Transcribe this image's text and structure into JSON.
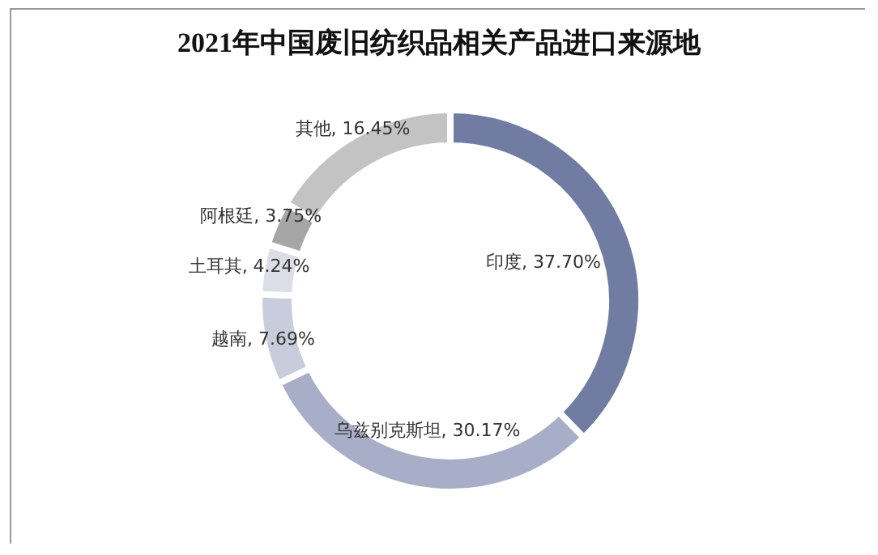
{
  "chart_data": {
    "type": "donut",
    "title": "2021年中国废旧纺织品相关产品进口来源地",
    "categories": [
      "印度",
      "乌兹别克斯坦",
      "越南",
      "土耳其",
      "阿根廷",
      "其他"
    ],
    "values": [
      37.7,
      30.17,
      7.69,
      4.24,
      3.75,
      16.45
    ],
    "value_labels": [
      "37.70%",
      "30.17%",
      "7.69%",
      "4.24%",
      "3.75%",
      "16.45%"
    ],
    "colors": [
      "#717ca2",
      "#a9aec8",
      "#c9ccdc",
      "#dcdee7",
      "#a6a6a6",
      "#c3c3c3"
    ],
    "legend": false
  }
}
